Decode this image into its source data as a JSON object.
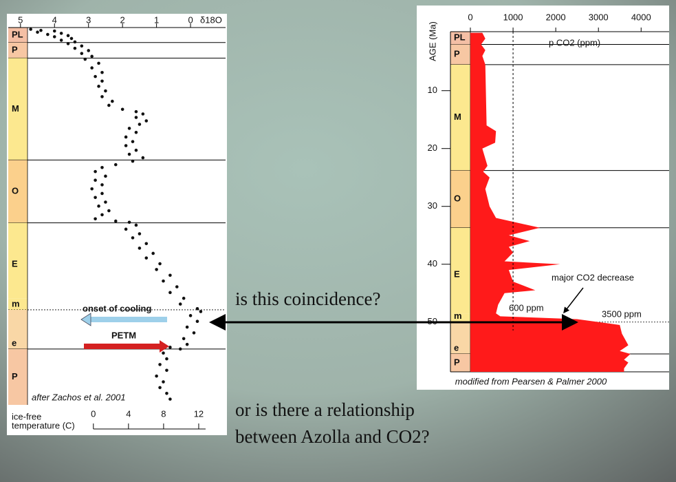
{
  "slide": {
    "question_1": "is this coincidence?",
    "question_2_line_1": "or is there a relationship",
    "question_2_line_2": "between Azolla and CO2?"
  },
  "chart_data": [
    {
      "type": "scatter",
      "x_label": "δ18O",
      "color": "#111111",
      "xlim": [
        5.36,
        -1.03
      ],
      "xticks": [
        5,
        4,
        3,
        2,
        1,
        0
      ],
      "ylim": [
        0,
        65.5
      ],
      "x2_label": [
        "ice-free",
        "temperature (C)"
      ],
      "x2lim": [
        -9.7,
        15.06
      ],
      "x2ticks": [
        0,
        4,
        8,
        12
      ],
      "x": [
        4.7,
        4.4,
        4.0,
        4.5,
        3.8,
        4.2,
        3.6,
        4.0,
        3.5,
        3.8,
        3.4,
        3.6,
        3.2,
        3.4,
        3.0,
        3.2,
        2.9,
        3.1,
        2.7,
        2.9,
        2.6,
        2.8,
        2.6,
        2.7,
        2.5,
        2.6,
        2.3,
        2.4,
        2.0,
        1.6,
        1.4,
        1.6,
        1.3,
        1.5,
        1.8,
        1.6,
        1.9,
        1.7,
        1.9,
        1.6,
        1.8,
        1.4,
        1.7,
        2.2,
        2.6,
        2.8,
        2.5,
        2.8,
        2.6,
        2.9,
        2.6,
        2.8,
        2.5,
        2.7,
        2.4,
        2.6,
        2.8,
        2.2,
        1.8,
        1.6,
        1.9,
        1.5,
        1.7,
        1.3,
        1.5,
        1.1,
        1.3,
        0.9,
        1.0,
        0.6,
        0.8,
        0.4,
        0.6,
        0.2,
        0.3,
        -0.2,
        -0.3,
        0.0,
        -0.2,
        0.1,
        -0.1,
        0.2,
        0.1,
        0.6,
        0.3,
        0.8,
        0.7,
        0.9,
        0.7,
        1.0,
        0.8,
        0.9,
        0.7,
        0.6
      ],
      "values": [
        0.3,
        0.5,
        0.6,
        0.8,
        1.0,
        1.2,
        1.4,
        1.6,
        1.9,
        2.2,
        2.5,
        2.8,
        3.2,
        3.6,
        4.0,
        4.5,
        5.0,
        5.5,
        6.2,
        7.0,
        7.8,
        8.5,
        9.3,
        10.2,
        11,
        12,
        12.8,
        13.5,
        14.2,
        14.6,
        15.0,
        15.6,
        16.2,
        16.8,
        17.5,
        18.2,
        19,
        19.8,
        20.5,
        21.3,
        22,
        22.6,
        23.2,
        23.8,
        24.3,
        25,
        25.8,
        26.5,
        27.3,
        28,
        28.8,
        29.5,
        30.3,
        31,
        31.8,
        32.5,
        33.2,
        33.6,
        33.8,
        34.3,
        35,
        35.8,
        36.5,
        37.5,
        38.3,
        39.2,
        40,
        41,
        42,
        43,
        44,
        45,
        46,
        47,
        48,
        48.8,
        49.3,
        50,
        51,
        52,
        53,
        54,
        55,
        55.5,
        55.8,
        56.5,
        57.5,
        58.5,
        59.5,
        60.5,
        61.5,
        62.5,
        63.5,
        64.5
      ],
      "epochs": [
        {
          "label": "PL",
          "start": 0,
          "end": 2.6,
          "color": "#f4bfa5",
          "line": "solid"
        },
        {
          "label": "P",
          "start": 2.6,
          "end": 5.3,
          "color": "#f7c7a3",
          "line": "solid"
        },
        {
          "label": "M",
          "start": 5.3,
          "end": 23,
          "color": "#fce88f",
          "line": "solid"
        },
        {
          "label": "O",
          "start": 23,
          "end": 33.9,
          "color": "#fbd08c",
          "line": "solid"
        },
        {
          "label": "E",
          "start": 33.9,
          "end": 47,
          "color": "#fce88f",
          "line": "none"
        },
        {
          "label": "m",
          "start": 47,
          "end": 49,
          "color": "#fce88f",
          "line": "dotted"
        },
        {
          "label": "e",
          "start": 49,
          "end": 55.8,
          "color": "#f9d7a6",
          "line": "solid"
        },
        {
          "label": "P",
          "start": 55.8,
          "end": 65.5,
          "color": "#f7c7a3",
          "line": "none"
        }
      ],
      "annotations": {
        "cooling": "onset of cooling",
        "petm": "PETM",
        "source": "after Zachos et al. 2001"
      }
    },
    {
      "type": "area",
      "x_label": "p CO2 (ppm)",
      "y_label": "AGE (Ma)",
      "color": "#ff1a1a",
      "xlim": [
        0,
        4640
      ],
      "xticks": [
        0,
        1000,
        2000,
        3000,
        4000
      ],
      "ylim": [
        -0.2,
        58.6
      ],
      "yticks": [
        10,
        20,
        30,
        40,
        50
      ],
      "reference_line": 1000,
      "y": [
        0,
        1,
        2,
        3,
        4,
        5.5,
        16,
        17,
        19,
        20,
        23,
        24,
        25,
        27,
        30,
        32,
        33.7,
        35,
        36,
        37,
        38,
        39.5,
        40,
        41,
        43,
        44.5,
        45,
        47,
        48.5,
        49,
        49.5,
        50.5,
        52,
        54,
        55,
        55.5,
        56.5,
        57,
        58,
        58.6
      ],
      "values": [
        280,
        350,
        250,
        350,
        280,
        350,
        380,
        600,
        580,
        280,
        400,
        300,
        450,
        350,
        450,
        600,
        1630,
        900,
        1390,
        900,
        1000,
        800,
        2100,
        900,
        1000,
        1520,
        800,
        650,
        600,
        700,
        2500,
        3500,
        3550,
        3700,
        3500,
        3750,
        3600,
        3700,
        3600,
        3600
      ],
      "epochs": [
        {
          "label": "PL",
          "start": -0.2,
          "end": 2,
          "color": "#f4bfa5",
          "line": "solid"
        },
        {
          "label": "P",
          "start": 2,
          "end": 5.5,
          "color": "#f7c7a3",
          "line": "solid"
        },
        {
          "label": "M",
          "start": 5.5,
          "end": 23.8,
          "color": "#fce88f",
          "line": "solid"
        },
        {
          "label": "O",
          "start": 23.8,
          "end": 33.7,
          "color": "#fbd08c",
          "line": "solid"
        },
        {
          "label": "E",
          "start": 33.7,
          "end": 48.5,
          "color": "#fce88f",
          "line": "none"
        },
        {
          "label": "m",
          "start": 48.5,
          "end": 50,
          "color": "#fce88f",
          "line": "dotted"
        },
        {
          "label": "e",
          "start": 50,
          "end": 55.5,
          "color": "#f9d7a6",
          "line": "solid"
        },
        {
          "label": "P",
          "start": 55.5,
          "end": 58.6,
          "color": "#f7c7a3",
          "line": "solid"
        }
      ],
      "annotations": {
        "decrease": "major CO2 decrease",
        "low": "600 ppm",
        "high": "3500 ppm",
        "source": "modified from Pearsen & Palmer 2000"
      }
    }
  ]
}
